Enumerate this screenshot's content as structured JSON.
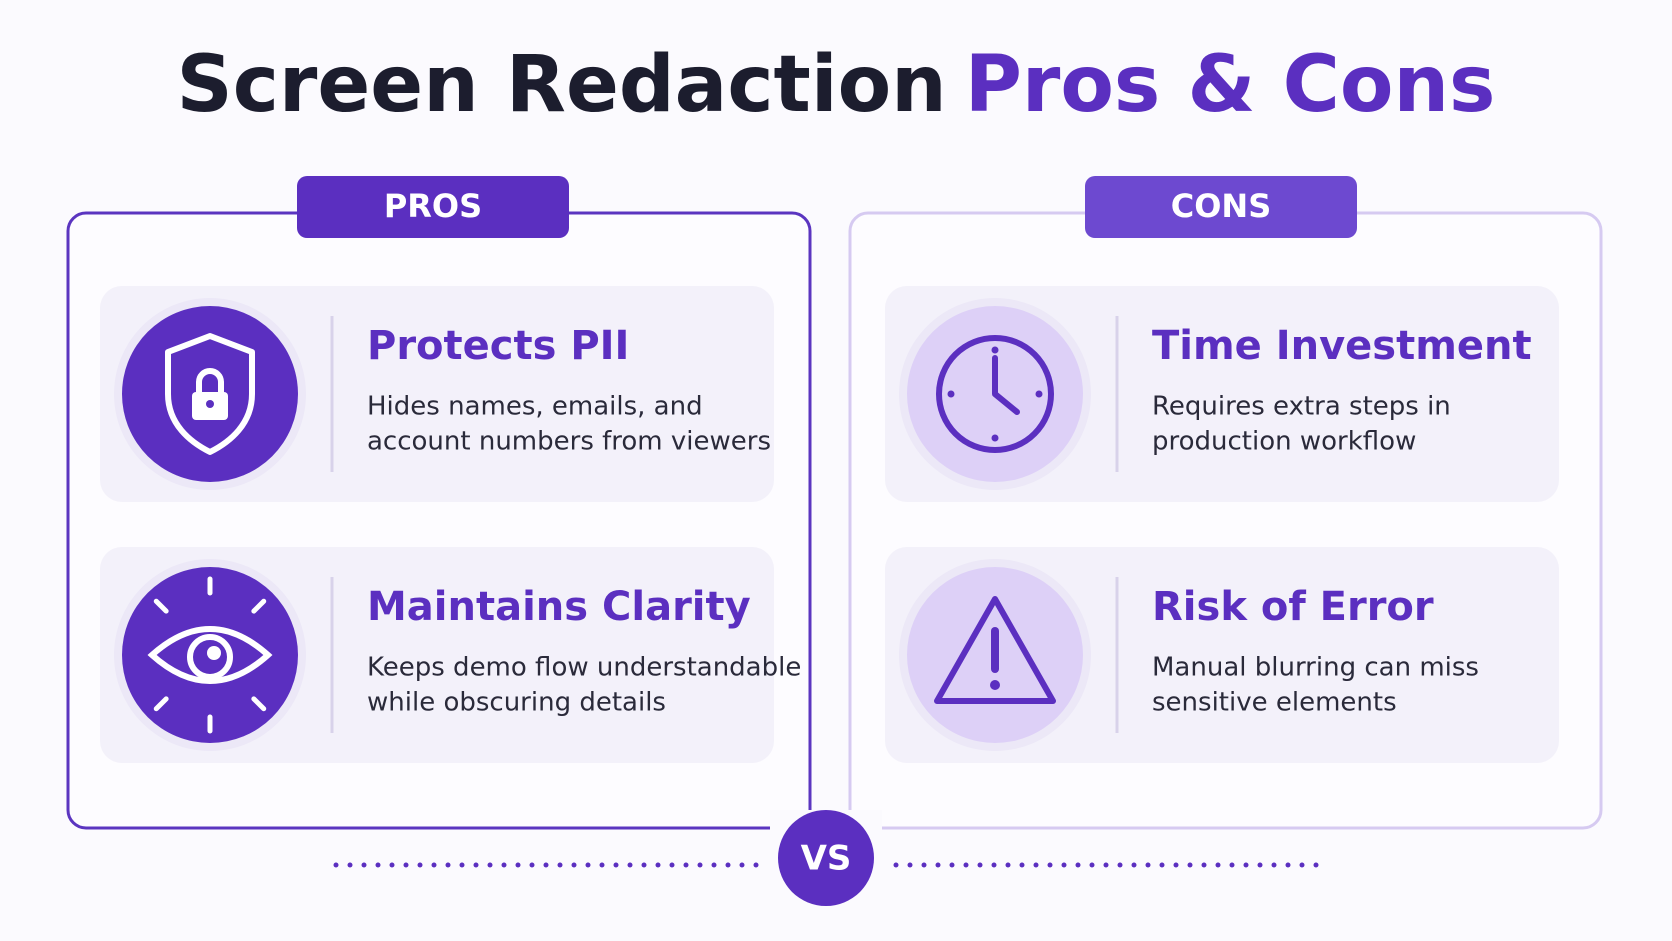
{
  "title": {
    "part1": "Screen Redaction",
    "part2": "Pros & Cons"
  },
  "pros": {
    "label": "PROS",
    "items": [
      {
        "title": "Protects PII",
        "lines": [
          "Hides names, emails, and",
          "account numbers from viewers"
        ]
      },
      {
        "title": "Maintains Clarity",
        "lines": [
          "Keeps demo flow understandable",
          "while obscuring details"
        ]
      }
    ]
  },
  "cons": {
    "label": "CONS",
    "items": [
      {
        "title": "Time Investment",
        "lines": [
          "Requires extra steps in",
          "production workflow"
        ]
      },
      {
        "title": "Risk of Error",
        "lines": [
          "Manual blurring can miss",
          "sensitive elements"
        ]
      }
    ]
  },
  "vs": "VS"
}
